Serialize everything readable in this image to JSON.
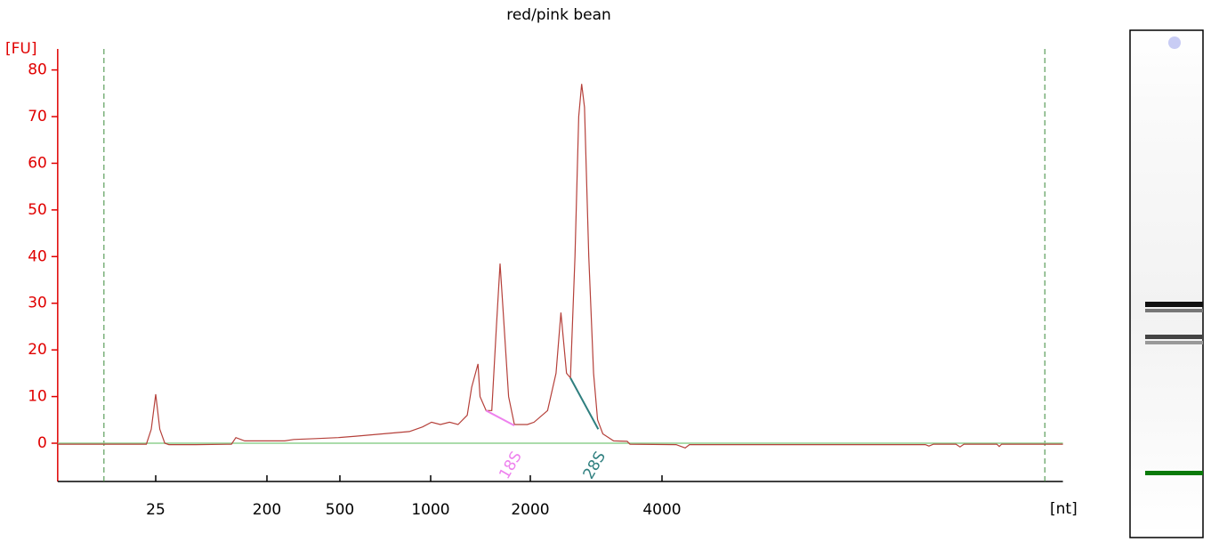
{
  "chart_data": {
    "type": "line",
    "title": "red/pink bean",
    "y_label": "[FU]",
    "x_label": "[nt]",
    "color": "#b5403a",
    "axis_color": "#e00000",
    "x": [
      4,
      9.5,
      21,
      23,
      25,
      27,
      29.6,
      32,
      53,
      103,
      112,
      132,
      250,
      280,
      370,
      490,
      565,
      693,
      850,
      940,
      1006,
      1070,
      1140,
      1210,
      1290,
      1330,
      1390,
      1410,
      1470,
      1530,
      1580,
      1620,
      1650,
      1720,
      1790,
      1960,
      2040,
      2190,
      2290,
      2350,
      2420,
      2470,
      2530,
      2580,
      2620,
      2660,
      2720,
      2790,
      2850,
      2930,
      3100,
      3330,
      3380,
      4310,
      4520,
      4620,
      16000,
      16300,
      16700,
      18800,
      19200,
      19600,
      23300,
      23600,
      23900,
      33000
    ],
    "values": [
      -0.2,
      -0.2,
      -0.2,
      3,
      10.5,
      3,
      0,
      -0.3,
      -0.3,
      -0.2,
      1.2,
      0.5,
      0.5,
      0.8,
      1.0,
      1.2,
      1.5,
      2.0,
      2.5,
      3.5,
      4.5,
      4,
      4.5,
      4,
      6,
      12,
      17,
      10,
      7,
      7,
      25,
      38.5,
      30,
      10,
      4,
      4,
      4.5,
      7,
      15,
      28,
      15,
      14,
      40,
      70,
      77,
      72,
      40,
      15,
      5,
      2,
      0.5,
      0.4,
      -0.2,
      -0.3,
      -1,
      -0.3,
      -0.3,
      -0.6,
      -0.2,
      -0.2,
      -0.8,
      -0.2,
      -0.2,
      -0.7,
      -0.2,
      -0.2
    ],
    "xlim": [
      4,
      33000
    ],
    "ylim": [
      -8.2,
      84.5
    ],
    "xticks": [
      25,
      200,
      500,
      1000,
      2000,
      4000
    ],
    "yticks": [
      0,
      10,
      20,
      30,
      40,
      50,
      60,
      70,
      80
    ],
    "marker_lines": [
      9.5,
      30000
    ],
    "peaks": [
      {
        "label": "18S",
        "color": "#ee82ee",
        "x": [
          1470,
          1790
        ],
        "y": [
          7,
          3.8
        ]
      },
      {
        "label": "28S",
        "color": "#2f7f7f",
        "x": [
          2470,
          2860
        ],
        "y": [
          14,
          3
        ]
      }
    ]
  }
}
